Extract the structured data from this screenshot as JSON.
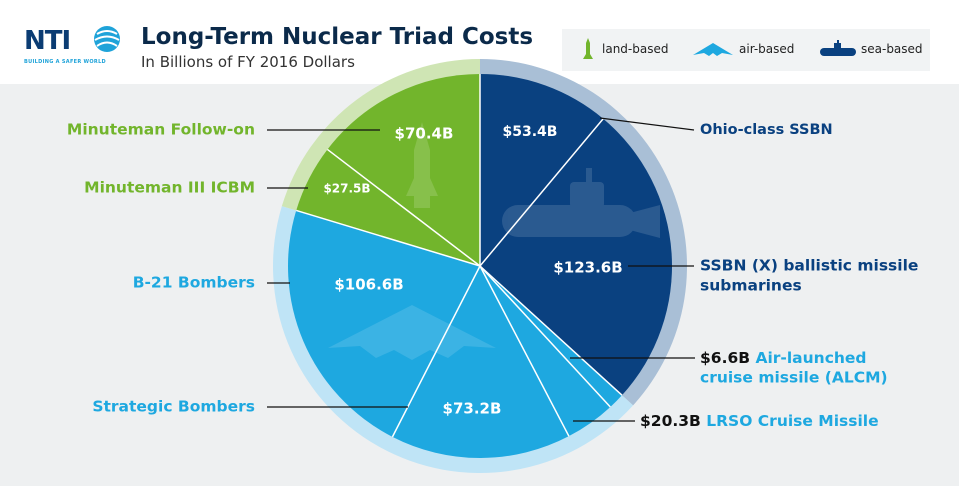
{
  "header": {
    "logo_text": "NTI",
    "logo_tagline": "BUILDING A SAFER WORLD",
    "title": "Long-Term Nuclear Triad Costs",
    "subtitle": "In Billions of FY 2016 Dollars"
  },
  "legend": {
    "land": "land-based",
    "air": "air-based",
    "sea": "sea-based"
  },
  "colors": {
    "land": "#72b52c",
    "land_ring": "#cfe5b4",
    "air": "#1ea8e0",
    "air_ring": "#bfe4f6",
    "sea": "#0a4180",
    "sea_ring": "#a9bfd6",
    "title": "#0b2a4a",
    "background": "#eef0f1"
  },
  "chart_data": {
    "type": "pie",
    "title": "Long-Term Nuclear Triad Costs",
    "subtitle": "In Billions of FY 2016 Dollars",
    "legend": [
      "land-based",
      "air-based",
      "sea-based"
    ],
    "groups": [
      {
        "name": "sea-based",
        "label": "",
        "components": [
          "Ohio-class SSBN",
          "SSBN (X) ballistic missile submarines"
        ]
      },
      {
        "name": "air-based",
        "label": "Strategic Bombers",
        "components": [
          "Air-launched cruise missile (ALCM)",
          "LRSO Cruise Missile",
          "B-21 Bombers"
        ]
      },
      {
        "name": "land-based",
        "label": "",
        "components": [
          "Minuteman III ICBM",
          "Minuteman Follow-on"
        ]
      }
    ],
    "slices": [
      {
        "label": "Ohio-class SSBN",
        "value": 53.4,
        "value_label": "$53.4B",
        "category": "sea-based"
      },
      {
        "label": "SSBN (X) ballistic missile submarines",
        "value": 123.6,
        "value_label": "$123.6B",
        "category": "sea-based"
      },
      {
        "label": "Air-launched cruise missile (ALCM)",
        "value": 6.6,
        "value_label": "$6.6B",
        "category": "air-based"
      },
      {
        "label": "LRSO Cruise Missile",
        "value": 20.3,
        "value_label": "$20.3B",
        "category": "air-based"
      },
      {
        "label": "Strategic Bombers",
        "value": 73.2,
        "value_label": "$73.2B",
        "category": "air-based"
      },
      {
        "label": "B-21 Bombers",
        "value": 106.6,
        "value_label": "$106.6B",
        "category": "air-based"
      },
      {
        "label": "Minuteman III ICBM",
        "value": 27.5,
        "value_label": "$27.5B",
        "category": "land-based"
      },
      {
        "label": "Minuteman Follow-on",
        "value": 70.4,
        "value_label": "$70.4B",
        "category": "land-based"
      }
    ],
    "external_labels": {
      "Ohio-class SSBN": [
        "Ohio-class SSBN"
      ],
      "SSBN (X) ballistic missile submarines": [
        "SSBN (X) ballistic missile",
        "submarines"
      ],
      "Air-launched cruise missile (ALCM)": [
        "Air-launched",
        "cruise missile (ALCM)"
      ],
      "LRSO Cruise Missile": [
        "LRSO Cruise Missile"
      ],
      "Strategic Bombers": [
        "Strategic Bombers"
      ],
      "B-21 Bombers": [
        "B-21 Bombers"
      ],
      "Minuteman III ICBM": [
        "Minuteman III ICBM"
      ],
      "Minuteman Follow-on": [
        "Minuteman Follow-on"
      ]
    }
  }
}
